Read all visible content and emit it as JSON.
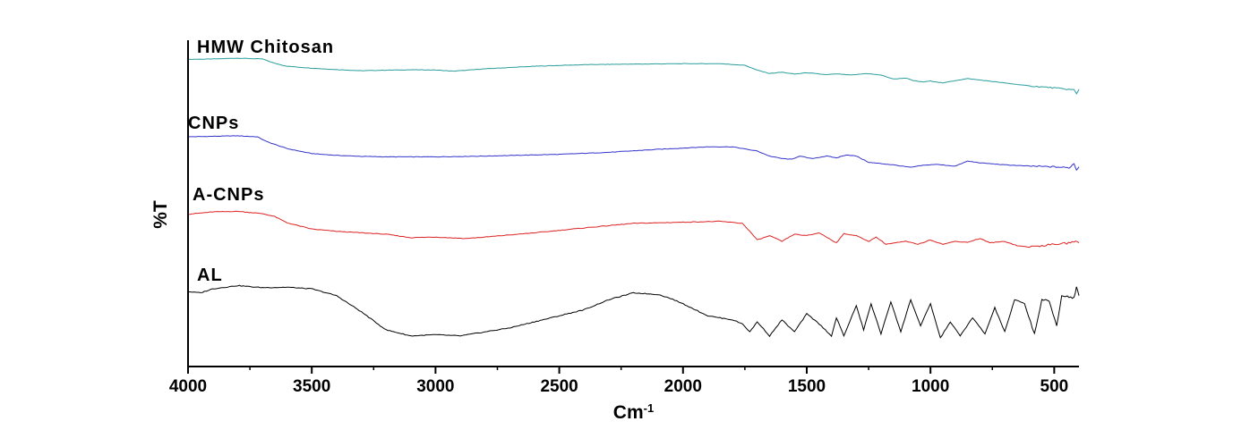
{
  "chart_data": {
    "type": "line",
    "xlabel": "Cm",
    "xlabel_sup": "-1",
    "ylabel": "%T",
    "xlim": [
      4000,
      400
    ],
    "x_reversed": true,
    "x_ticks": [
      4000,
      3500,
      3000,
      2500,
      2000,
      1500,
      1000,
      500
    ],
    "y_ticks_shown": false,
    "grid": false,
    "legend": "inline-labels",
    "series": [
      {
        "name": "HMW Chitosan",
        "color": "#2a9d9d",
        "points": [
          [
            4000,
            0.8
          ],
          [
            3900,
            0.82
          ],
          [
            3800,
            0.86
          ],
          [
            3700,
            0.82
          ],
          [
            3650,
            0.6
          ],
          [
            3600,
            0.45
          ],
          [
            3500,
            0.35
          ],
          [
            3400,
            0.28
          ],
          [
            3300,
            0.22
          ],
          [
            3200,
            0.25
          ],
          [
            3100,
            0.27
          ],
          [
            3000,
            0.26
          ],
          [
            2930,
            0.2
          ],
          [
            2880,
            0.24
          ],
          [
            2800,
            0.32
          ],
          [
            2600,
            0.45
          ],
          [
            2400,
            0.53
          ],
          [
            2200,
            0.56
          ],
          [
            2000,
            0.58
          ],
          [
            1850,
            0.58
          ],
          [
            1750,
            0.5
          ],
          [
            1700,
            0.25
          ],
          [
            1650,
            0.08
          ],
          [
            1600,
            0.15
          ],
          [
            1550,
            0.05
          ],
          [
            1500,
            0.12
          ],
          [
            1420,
            0.02
          ],
          [
            1380,
            0.06
          ],
          [
            1320,
            0.0
          ],
          [
            1260,
            0.08
          ],
          [
            1200,
            0.0
          ],
          [
            1150,
            -0.2
          ],
          [
            1100,
            -0.15
          ],
          [
            1070,
            -0.28
          ],
          [
            1030,
            -0.35
          ],
          [
            1000,
            -0.3
          ],
          [
            950,
            -0.4
          ],
          [
            900,
            -0.28
          ],
          [
            850,
            -0.18
          ],
          [
            800,
            -0.25
          ],
          [
            700,
            -0.4
          ],
          [
            600,
            -0.55
          ],
          [
            500,
            -0.65
          ],
          [
            450,
            -0.72
          ],
          [
            420,
            -0.75
          ],
          [
            410,
            -0.95
          ],
          [
            400,
            -0.72
          ]
        ]
      },
      {
        "name": "CNPs",
        "color": "#3333cc",
        "points": [
          [
            4000,
            0.82
          ],
          [
            3900,
            0.84
          ],
          [
            3800,
            0.86
          ],
          [
            3720,
            0.82
          ],
          [
            3680,
            0.62
          ],
          [
            3600,
            0.35
          ],
          [
            3500,
            0.15
          ],
          [
            3400,
            0.08
          ],
          [
            3300,
            0.04
          ],
          [
            3200,
            0.02
          ],
          [
            3000,
            0.02
          ],
          [
            2800,
            0.05
          ],
          [
            2500,
            0.12
          ],
          [
            2300,
            0.2
          ],
          [
            2100,
            0.32
          ],
          [
            1900,
            0.42
          ],
          [
            1800,
            0.42
          ],
          [
            1700,
            0.25
          ],
          [
            1650,
            0.05
          ],
          [
            1600,
            -0.05
          ],
          [
            1560,
            -0.08
          ],
          [
            1530,
            0.05
          ],
          [
            1480,
            -0.05
          ],
          [
            1420,
            0.05
          ],
          [
            1380,
            -0.02
          ],
          [
            1340,
            0.1
          ],
          [
            1300,
            0.05
          ],
          [
            1250,
            -0.2
          ],
          [
            1150,
            -0.3
          ],
          [
            1080,
            -0.4
          ],
          [
            1030,
            -0.32
          ],
          [
            980,
            -0.28
          ],
          [
            900,
            -0.35
          ],
          [
            850,
            -0.15
          ],
          [
            800,
            -0.22
          ],
          [
            700,
            -0.3
          ],
          [
            600,
            -0.35
          ],
          [
            500,
            -0.38
          ],
          [
            440,
            -0.42
          ],
          [
            420,
            -0.25
          ],
          [
            410,
            -0.5
          ],
          [
            400,
            -0.38
          ]
        ]
      },
      {
        "name": "A-CNPs",
        "color": "#dd2222",
        "points": [
          [
            4000,
            0.7
          ],
          [
            3900,
            0.78
          ],
          [
            3800,
            0.8
          ],
          [
            3700,
            0.72
          ],
          [
            3650,
            0.62
          ],
          [
            3600,
            0.4
          ],
          [
            3500,
            0.18
          ],
          [
            3400,
            0.1
          ],
          [
            3300,
            0.05
          ],
          [
            3200,
            0.0
          ],
          [
            3100,
            -0.12
          ],
          [
            3000,
            -0.1
          ],
          [
            2880,
            -0.15
          ],
          [
            2800,
            -0.1
          ],
          [
            2600,
            0.05
          ],
          [
            2400,
            0.22
          ],
          [
            2200,
            0.38
          ],
          [
            2000,
            0.42
          ],
          [
            1850,
            0.45
          ],
          [
            1760,
            0.38
          ],
          [
            1730,
            0.1
          ],
          [
            1700,
            -0.2
          ],
          [
            1650,
            -0.05
          ],
          [
            1600,
            -0.25
          ],
          [
            1550,
            0.0
          ],
          [
            1500,
            -0.05
          ],
          [
            1450,
            0.05
          ],
          [
            1400,
            -0.2
          ],
          [
            1380,
            -0.3
          ],
          [
            1350,
            0.02
          ],
          [
            1300,
            -0.05
          ],
          [
            1250,
            -0.25
          ],
          [
            1220,
            -0.1
          ],
          [
            1180,
            -0.35
          ],
          [
            1100,
            -0.25
          ],
          [
            1050,
            -0.35
          ],
          [
            1000,
            -0.2
          ],
          [
            950,
            -0.35
          ],
          [
            900,
            -0.25
          ],
          [
            850,
            -0.28
          ],
          [
            800,
            -0.15
          ],
          [
            760,
            -0.3
          ],
          [
            700,
            -0.25
          ],
          [
            650,
            -0.4
          ],
          [
            600,
            -0.45
          ],
          [
            550,
            -0.4
          ],
          [
            500,
            -0.35
          ],
          [
            450,
            -0.32
          ],
          [
            420,
            -0.25
          ],
          [
            400,
            -0.3
          ]
        ]
      },
      {
        "name": "AL",
        "color": "#000000",
        "points": [
          [
            4000,
            0.75
          ],
          [
            3950,
            0.72
          ],
          [
            3900,
            0.82
          ],
          [
            3800,
            0.9
          ],
          [
            3700,
            0.85
          ],
          [
            3600,
            0.86
          ],
          [
            3500,
            0.82
          ],
          [
            3400,
            0.65
          ],
          [
            3300,
            0.25
          ],
          [
            3200,
            -0.2
          ],
          [
            3100,
            -0.35
          ],
          [
            3000,
            -0.32
          ],
          [
            2900,
            -0.35
          ],
          [
            2800,
            -0.25
          ],
          [
            2700,
            -0.15
          ],
          [
            2600,
            0.0
          ],
          [
            2500,
            0.15
          ],
          [
            2400,
            0.3
          ],
          [
            2300,
            0.55
          ],
          [
            2200,
            0.72
          ],
          [
            2100,
            0.68
          ],
          [
            2050,
            0.58
          ],
          [
            2000,
            0.45
          ],
          [
            1950,
            0.3
          ],
          [
            1900,
            0.15
          ],
          [
            1850,
            0.1
          ],
          [
            1800,
            0.05
          ],
          [
            1760,
            -0.05
          ],
          [
            1730,
            -0.25
          ],
          [
            1700,
            0.0
          ],
          [
            1650,
            -0.35
          ],
          [
            1600,
            0.05
          ],
          [
            1550,
            -0.25
          ],
          [
            1500,
            0.2
          ],
          [
            1450,
            -0.05
          ],
          [
            1400,
            -0.35
          ],
          [
            1380,
            0.1
          ],
          [
            1350,
            -0.35
          ],
          [
            1300,
            0.4
          ],
          [
            1270,
            -0.2
          ],
          [
            1240,
            0.45
          ],
          [
            1200,
            -0.3
          ],
          [
            1160,
            0.5
          ],
          [
            1120,
            -0.25
          ],
          [
            1080,
            0.55
          ],
          [
            1040,
            -0.1
          ],
          [
            1000,
            0.45
          ],
          [
            960,
            -0.4
          ],
          [
            920,
            0.0
          ],
          [
            880,
            -0.35
          ],
          [
            830,
            0.1
          ],
          [
            780,
            -0.3
          ],
          [
            740,
            0.35
          ],
          [
            700,
            -0.25
          ],
          [
            660,
            0.55
          ],
          [
            620,
            0.45
          ],
          [
            580,
            -0.3
          ],
          [
            550,
            0.55
          ],
          [
            520,
            0.5
          ],
          [
            490,
            -0.1
          ],
          [
            470,
            0.65
          ],
          [
            440,
            0.62
          ],
          [
            420,
            0.6
          ],
          [
            410,
            0.85
          ],
          [
            400,
            0.65
          ]
        ]
      }
    ]
  }
}
